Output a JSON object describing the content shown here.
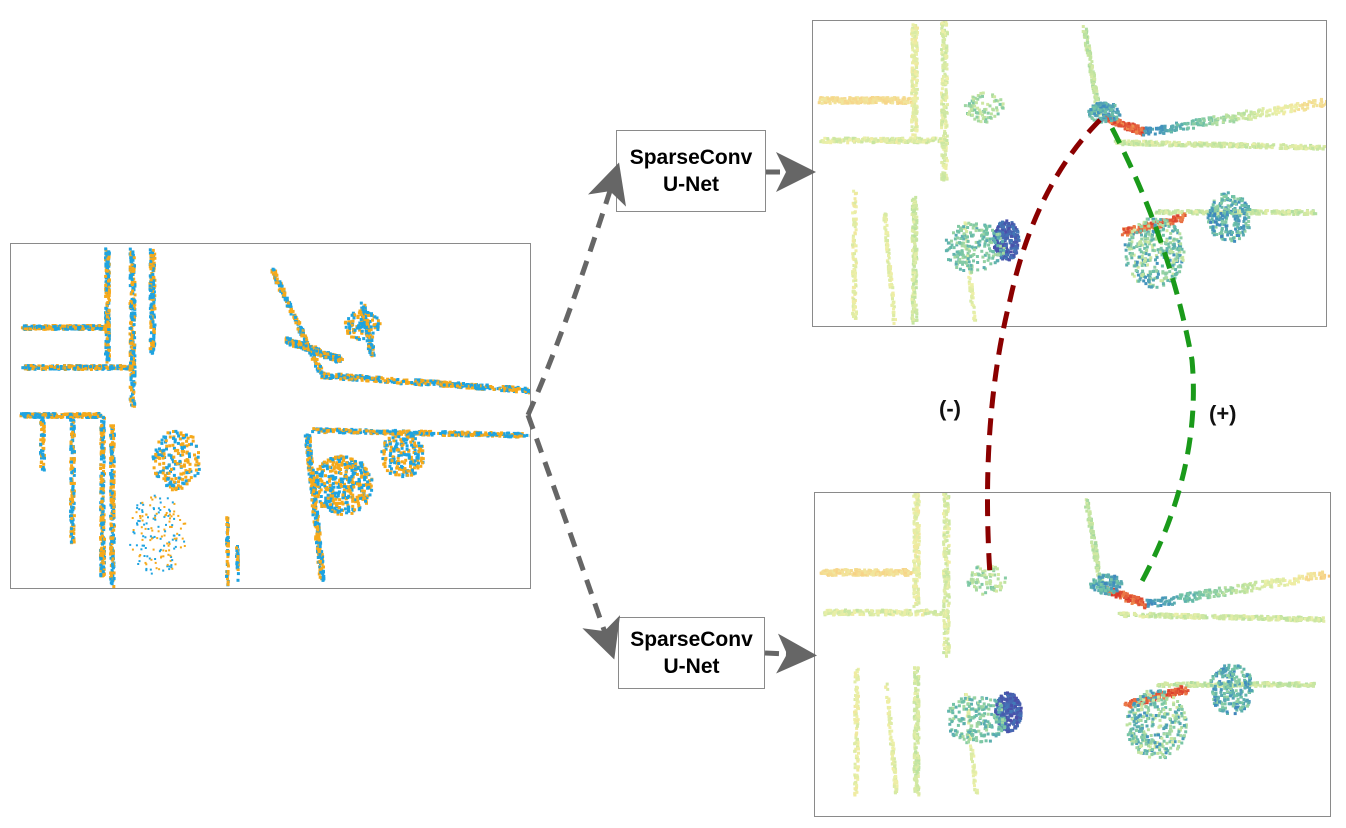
{
  "boxes": [
    {
      "line1": "SparseConv",
      "line2": "U-Net"
    },
    {
      "line1": "SparseConv",
      "line2": "U-Net"
    }
  ],
  "pair_labels": {
    "negative": "(-)",
    "positive": "(+)"
  },
  "colors": {
    "input_a": "#f5a91b",
    "input_b": "#1ea3e0",
    "arrow": "#666666",
    "negative_link": "#8b0000",
    "positive_link": "#1a9a1a",
    "feature_palette": [
      "#4b4ba8",
      "#3f8fbf",
      "#6cc0a7",
      "#bde3a0",
      "#eef0a8",
      "#f7d488",
      "#ef8a4e",
      "#d73027"
    ]
  }
}
